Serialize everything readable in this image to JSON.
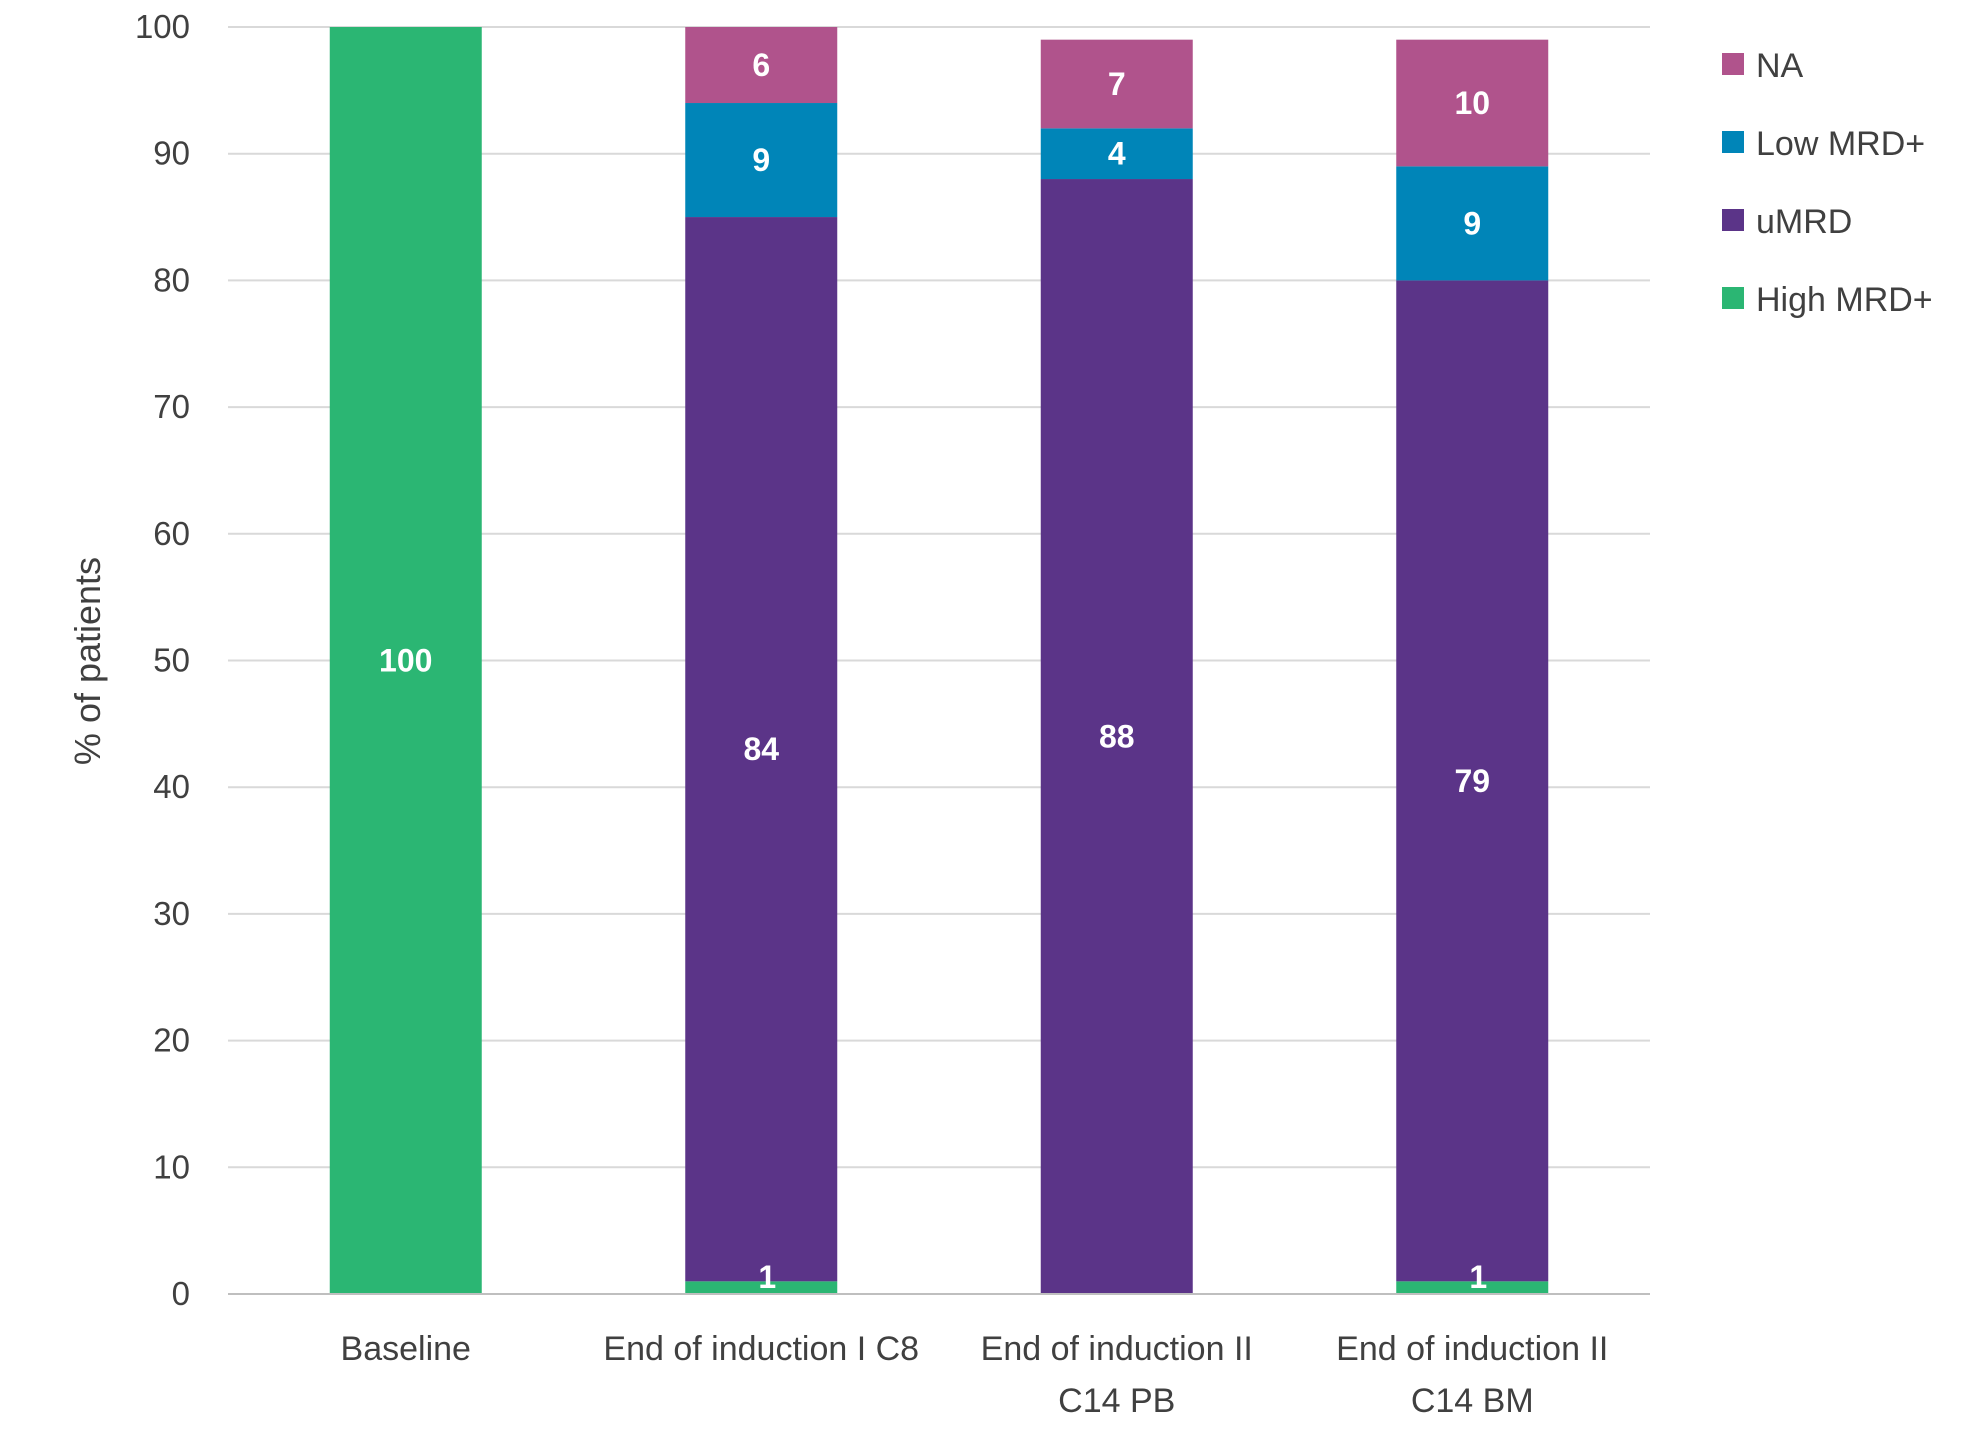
{
  "chart_data": {
    "type": "bar",
    "stacked": true,
    "title": "",
    "xlabel": "",
    "ylabel": "% of patients",
    "ylim": [
      0,
      100
    ],
    "yticks": [
      0,
      10,
      20,
      30,
      40,
      50,
      60,
      70,
      80,
      90,
      100
    ],
    "grid": true,
    "legend_position": "top-right",
    "categories": [
      [
        "Baseline"
      ],
      [
        "End of induction I C8"
      ],
      [
        "End of induction II",
        "C14 PB"
      ],
      [
        "End of induction II",
        "C14 BM"
      ]
    ],
    "series": [
      {
        "name": "High MRD+",
        "color": "#2bb673",
        "values": [
          100,
          1,
          0,
          1
        ]
      },
      {
        "name": "uMRD",
        "color": "#5b3488",
        "values": [
          0,
          84,
          88,
          79
        ]
      },
      {
        "name": "Low MRD+",
        "color": "#0085b8",
        "values": [
          0,
          9,
          4,
          9
        ]
      },
      {
        "name": "NA",
        "color": "#b0538c",
        "values": [
          0,
          6,
          7,
          10
        ]
      }
    ],
    "legend_order": [
      "NA",
      "Low MRD+",
      "uMRD",
      "High MRD+"
    ]
  }
}
